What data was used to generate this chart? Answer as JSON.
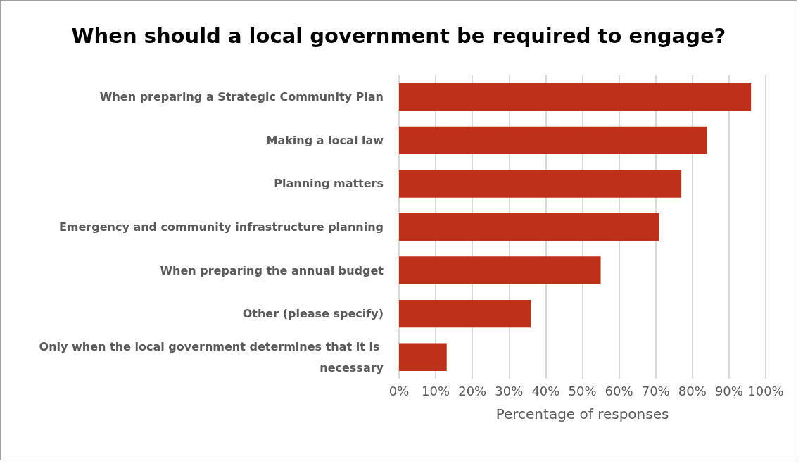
{
  "chart_data": {
    "type": "bar",
    "orientation": "horizontal",
    "title": "When should a local government be required to engage?",
    "xlabel": "Percentage of responses",
    "categories": [
      "When preparing a Strategic Community Plan",
      "Making a local law",
      "Planning matters",
      "Emergency and community infrastructure planning",
      "When preparing the annual budget",
      "Other (please specify)",
      "Only when the local government determines that it is necessary"
    ],
    "values": [
      96,
      84,
      77,
      71,
      55,
      36,
      13
    ],
    "color": "#be3019",
    "xlim": [
      0,
      100
    ],
    "xticks": [
      {
        "value": 0,
        "label": "0%"
      },
      {
        "value": 10,
        "label": "10%"
      },
      {
        "value": 20,
        "label": "20%"
      },
      {
        "value": 30,
        "label": "30%"
      },
      {
        "value": 40,
        "label": "40%"
      },
      {
        "value": 50,
        "label": "50%"
      },
      {
        "value": 60,
        "label": "60%"
      },
      {
        "value": 70,
        "label": "70%"
      },
      {
        "value": 80,
        "label": "80%"
      },
      {
        "value": 90,
        "label": "90%"
      },
      {
        "value": 100,
        "label": "100%"
      }
    ],
    "grid": "x"
  }
}
